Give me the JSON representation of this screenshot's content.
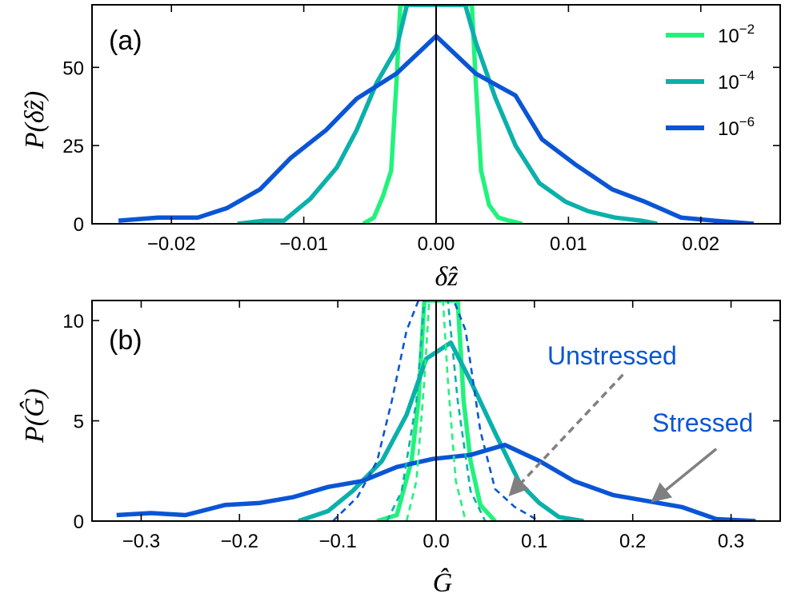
{
  "chart_data": [
    {
      "type": "line",
      "panel_label": "(a)",
      "xlabel": "δ̂z",
      "ylabel": "P(δ̂z)",
      "xlim": [
        -0.026,
        0.026
      ],
      "ylim": [
        0,
        70
      ],
      "xticks": [
        -0.02,
        -0.01,
        0.0,
        0.01,
        0.02
      ],
      "xtick_labels": [
        "−0.02",
        "−0.01",
        "0.00",
        "0.01",
        "0.02"
      ],
      "yticks": [
        0,
        25,
        50
      ],
      "ytick_labels": [
        "0",
        "25",
        "50"
      ],
      "vline_x": 0,
      "legend_position": "top-right",
      "series": [
        {
          "name": "10^-2",
          "label_base": "10",
          "label_exp": "−2",
          "color": "#22f27c",
          "x": [
            -0.0055,
            -0.0047,
            -0.004,
            -0.0034,
            -0.003,
            -0.0027,
            0.0027,
            0.003,
            0.0034,
            0.004,
            0.0047,
            0.0055,
            0.0065
          ],
          "y": [
            0,
            2,
            9,
            17,
            45,
            70,
            70,
            45,
            17,
            6,
            2,
            1,
            0
          ]
        },
        {
          "name": "10^-4",
          "label_base": "10",
          "label_exp": "−4",
          "color": "#0bb0aa",
          "x": [
            -0.015,
            -0.013,
            -0.0115,
            -0.0095,
            -0.0075,
            -0.006,
            -0.0045,
            -0.003,
            -0.0022,
            0.0022,
            0.003,
            0.0045,
            0.006,
            0.0078,
            0.0098,
            0.0115,
            0.0135,
            0.0155,
            0.0167
          ],
          "y": [
            0,
            1,
            1,
            8,
            18,
            30,
            45,
            56,
            70,
            70,
            58,
            40,
            25,
            13,
            7,
            4,
            2,
            1,
            0
          ]
        },
        {
          "name": "10^-6",
          "label_base": "10",
          "label_exp": "−6",
          "color": "#0a55d6",
          "x": [
            -0.024,
            -0.021,
            -0.018,
            -0.0158,
            -0.0133,
            -0.011,
            -0.0083,
            -0.006,
            -0.003,
            0.0,
            0.003,
            0.006,
            0.008,
            0.0105,
            0.0133,
            0.0158,
            0.0185,
            0.021,
            0.024
          ],
          "y": [
            1,
            2,
            2,
            5,
            11,
            21,
            30,
            40,
            48,
            60,
            48,
            41,
            27,
            19,
            11,
            7,
            2,
            1,
            0
          ]
        }
      ]
    },
    {
      "type": "line",
      "panel_label": "(b)",
      "xlabel": "Ĝ",
      "ylabel": "P(Ĝ)",
      "xlim": [
        -0.35,
        0.35
      ],
      "ylim": [
        0,
        11
      ],
      "xticks": [
        -0.3,
        -0.2,
        -0.1,
        0.0,
        0.1,
        0.2,
        0.3
      ],
      "xtick_labels": [
        "−0.3",
        "−0.2",
        "−0.1",
        "0.0",
        "0.1",
        "0.2",
        "0.3"
      ],
      "yticks": [
        0,
        5,
        10
      ],
      "ytick_labels": [
        "0",
        "5",
        "10"
      ],
      "vline_x": 0,
      "series": [
        {
          "name": "10^-2 stressed",
          "color": "#22f27c",
          "style": "solid",
          "x": [
            -0.06,
            -0.04,
            -0.025,
            -0.018,
            -0.012,
            0.022,
            0.028,
            0.035,
            0.045,
            0.06
          ],
          "y": [
            0,
            0.3,
            3,
            6,
            11,
            11,
            6,
            3,
            0.8,
            0
          ]
        },
        {
          "name": "10^-4 stressed",
          "color": "#0bb0aa",
          "style": "solid",
          "x": [
            -0.14,
            -0.11,
            -0.085,
            -0.055,
            -0.03,
            -0.01,
            0.015,
            0.035,
            0.06,
            0.085,
            0.105,
            0.125,
            0.15
          ],
          "y": [
            0,
            0.5,
            1.5,
            3,
            5.3,
            8.1,
            8.9,
            7,
            4.4,
            1.9,
            0.9,
            0.2,
            0
          ]
        },
        {
          "name": "10^-6 stressed",
          "color": "#0a55d6",
          "style": "solid",
          "x": [
            -0.325,
            -0.29,
            -0.255,
            -0.215,
            -0.18,
            -0.145,
            -0.11,
            -0.075,
            -0.04,
            -0.003,
            0.035,
            0.07,
            0.105,
            0.14,
            0.18,
            0.215,
            0.25,
            0.285,
            0.325
          ],
          "y": [
            0.3,
            0.4,
            0.3,
            0.8,
            0.9,
            1.2,
            1.7,
            2.0,
            2.7,
            3.1,
            3.3,
            3.8,
            3.0,
            2.0,
            1.3,
            1.0,
            0.7,
            0.1,
            0
          ]
        },
        {
          "name": "10^-2 unstressed",
          "color": "#22f27c",
          "style": "dashed",
          "x": [
            -0.03,
            -0.02,
            -0.012,
            -0.007,
            0.007,
            0.012,
            0.02,
            0.03
          ],
          "y": [
            0,
            2,
            7,
            11,
            11,
            7,
            2,
            0
          ]
        },
        {
          "name": "10^-4 unstressed",
          "color": "#0bb0aa",
          "style": "dashed",
          "x": [
            -0.05,
            -0.035,
            -0.02,
            -0.012,
            0.012,
            0.022,
            0.035,
            0.05
          ],
          "y": [
            0,
            1.5,
            6,
            11,
            11,
            6,
            1.5,
            0
          ]
        },
        {
          "name": "10^-6 unstressed",
          "color": "#0a55d6",
          "style": "dashed",
          "x": [
            -0.105,
            -0.08,
            -0.06,
            -0.045,
            -0.03,
            -0.018,
            0.018,
            0.03,
            0.045,
            0.06,
            0.08,
            0.105
          ],
          "y": [
            0,
            1.2,
            3,
            6,
            9.5,
            11,
            11,
            9.5,
            4.5,
            1.6,
            0.7,
            0
          ]
        }
      ],
      "annotations": [
        {
          "text": "Unstressed",
          "arrow_style": "dashed",
          "color": "#808080",
          "text_pos": [
            0.12,
            8.8
          ],
          "tail": [
            0.19,
            7.3
          ],
          "head": [
            0.075,
            1.3
          ]
        },
        {
          "text": "Stressed",
          "arrow_style": "solid",
          "color": "#808080",
          "text_pos": [
            0.24,
            5.0
          ],
          "tail": [
            0.285,
            3.6
          ],
          "head": [
            0.22,
            1.0
          ]
        }
      ]
    }
  ]
}
